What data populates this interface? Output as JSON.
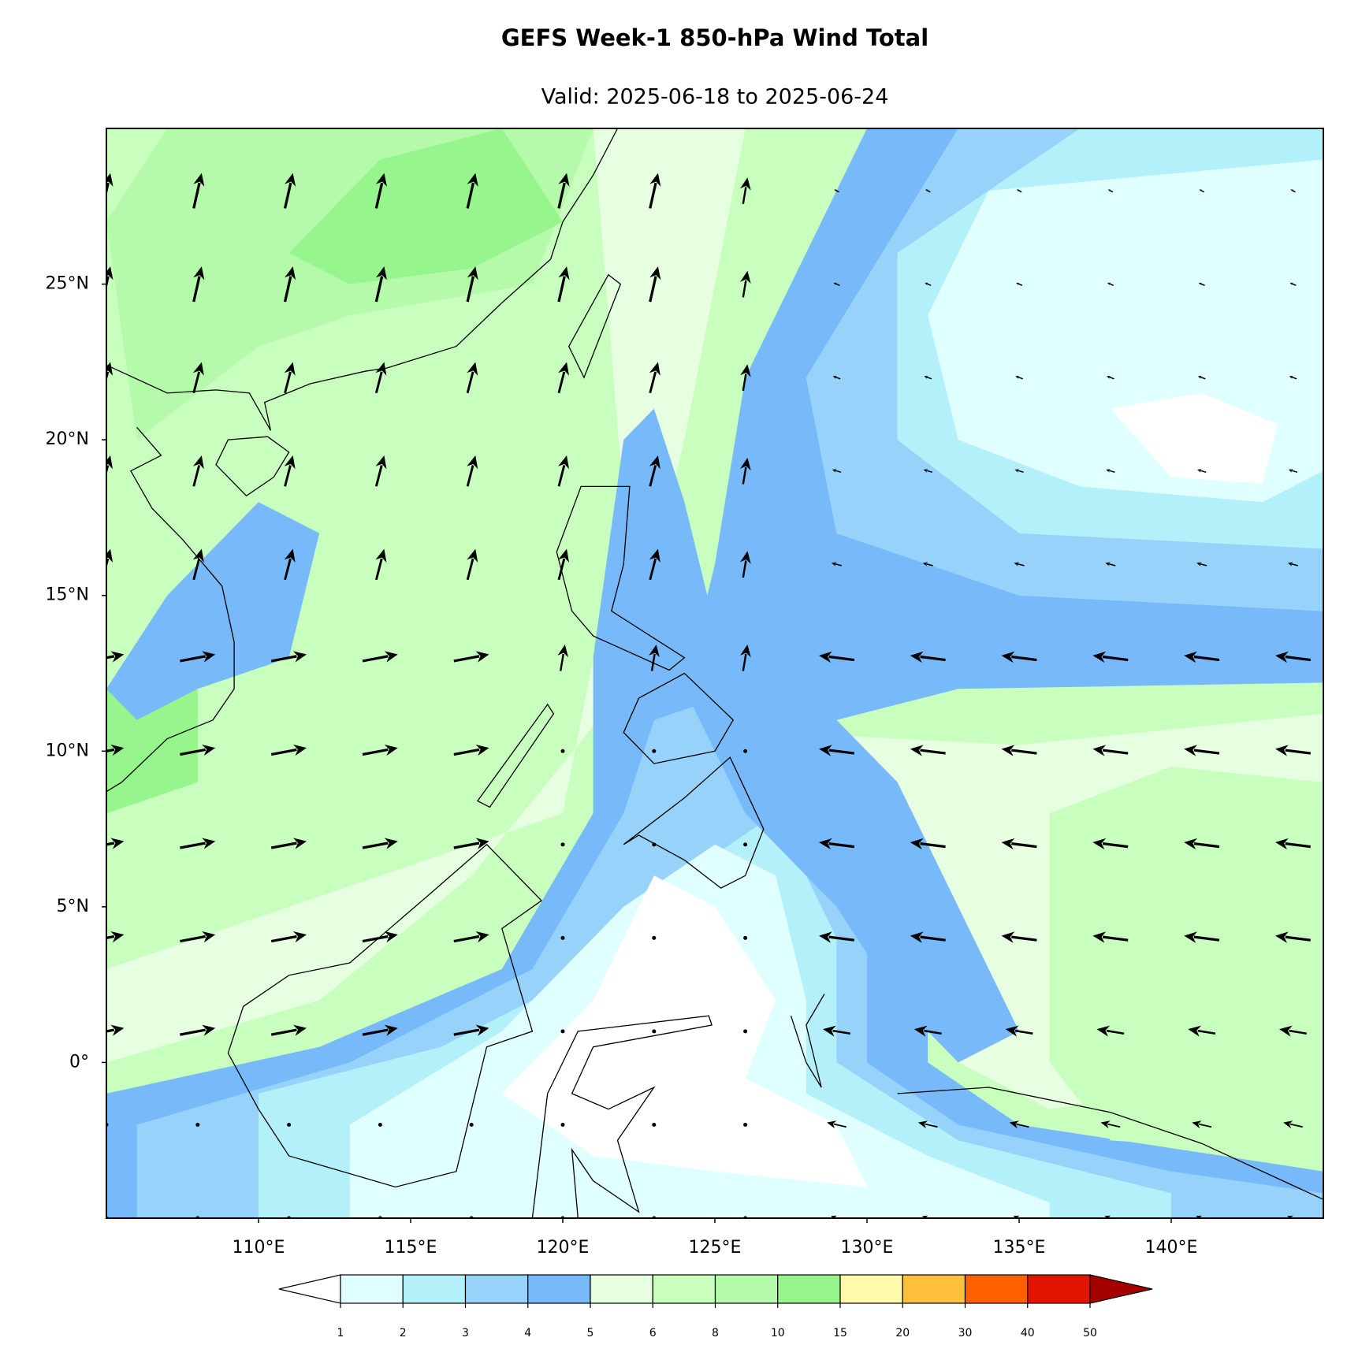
{
  "header": {
    "title": "GEFS Week-1 850-hPa Wind Total",
    "subtitle": "Valid: 2025-06-18 to 2025-06-24"
  },
  "map": {
    "lon_range": [
      105,
      145
    ],
    "lat_range": [
      -5,
      30
    ],
    "lon_ticks": [
      {
        "value": 110,
        "label": "110°E"
      },
      {
        "value": 115,
        "label": "115°E"
      },
      {
        "value": 120,
        "label": "120°E"
      },
      {
        "value": 125,
        "label": "125°E"
      },
      {
        "value": 130,
        "label": "130°E"
      },
      {
        "value": 135,
        "label": "135°E"
      },
      {
        "value": 140,
        "label": "140°E"
      }
    ],
    "lat_ticks": [
      {
        "value": 0,
        "label": "0°"
      },
      {
        "value": 5,
        "label": "5°N"
      },
      {
        "value": 10,
        "label": "10°N"
      },
      {
        "value": 15,
        "label": "15°N"
      },
      {
        "value": 20,
        "label": "20°N"
      },
      {
        "value": 25,
        "label": "25°N"
      }
    ]
  },
  "colorbar": {
    "levels": [
      1,
      2,
      3,
      4,
      5,
      6,
      8,
      10,
      15,
      20,
      30,
      40,
      50
    ],
    "colors": [
      "#e0ffff",
      "#b4f0fa",
      "#96d2fa",
      "#78b9fa",
      "#e6ffe1",
      "#c8ffbe",
      "#b4faaa",
      "#96f58c",
      "#fffaaa",
      "#ffc03c",
      "#ff6000",
      "#e11400"
    ],
    "under_color": "#ffffff",
    "over_color": "#a50000"
  }
}
